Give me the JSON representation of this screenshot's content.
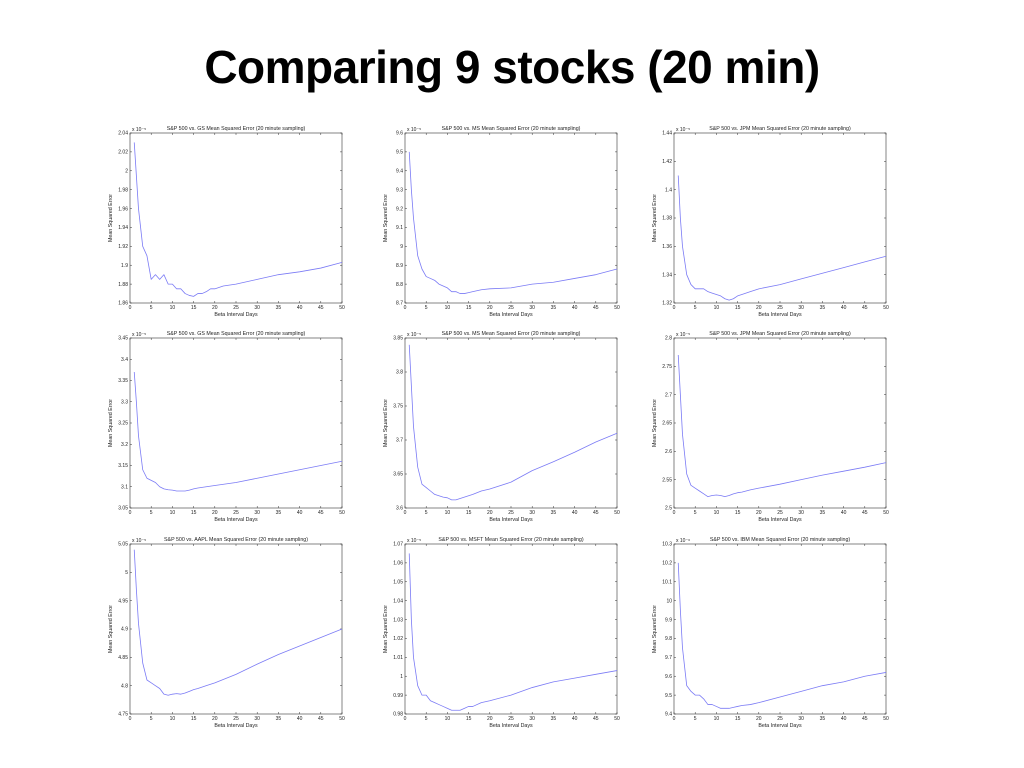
{
  "slide": {
    "title": "Comparing 9 stocks (20 min)"
  },
  "colors": {
    "line": "#7b7bf5",
    "axes": "#333333",
    "background": "#ffffff"
  },
  "chart_data": [
    {
      "type": "line",
      "title": "S&P 500 vs. GS Mean Squared Error (20 minute sampling)",
      "xlabel": "Beta Interval Days",
      "ylabel": "Mean Squared Error",
      "exponent": "x 10⁻⁵",
      "xlim": [
        0,
        50
      ],
      "ylim": [
        1.86,
        2.04
      ],
      "xticks": [
        0,
        5,
        10,
        15,
        20,
        25,
        30,
        35,
        40,
        45,
        50
      ],
      "yticks": [
        1.86,
        1.88,
        1.9,
        1.92,
        1.94,
        1.96,
        1.98,
        2,
        2.02,
        2.04
      ],
      "yticklabels": [
        "1.86",
        "1.88",
        "1.9",
        "1.92",
        "1.94",
        "1.96",
        "1.98",
        "2",
        "2.02",
        "2.04"
      ],
      "x": [
        1,
        2,
        3,
        4,
        5,
        6,
        7,
        8,
        9,
        10,
        11,
        12,
        13,
        14,
        15,
        16,
        17,
        18,
        19,
        20,
        22,
        25,
        30,
        35,
        40,
        45,
        50
      ],
      "y": [
        2.03,
        1.96,
        1.92,
        1.91,
        1.885,
        1.89,
        1.885,
        1.89,
        1.88,
        1.88,
        1.875,
        1.875,
        1.87,
        1.868,
        1.867,
        1.87,
        1.87,
        1.872,
        1.875,
        1.875,
        1.878,
        1.88,
        1.885,
        1.89,
        1.893,
        1.897,
        1.903
      ]
    },
    {
      "type": "line",
      "title": "S&P 500 vs. MS Mean Squared Error (20 minute sampling)",
      "xlabel": "Beta Interval Days",
      "ylabel": "Mean Squared Error",
      "exponent": "x 10⁻⁵",
      "xlim": [
        0,
        50
      ],
      "ylim": [
        8.7,
        9.6
      ],
      "xticks": [
        0,
        5,
        10,
        15,
        20,
        25,
        30,
        35,
        40,
        45,
        50
      ],
      "yticks": [
        8.7,
        8.8,
        8.9,
        9,
        9.1,
        9.2,
        9.3,
        9.4,
        9.5,
        9.6
      ],
      "yticklabels": [
        "8.7",
        "8.8",
        "8.9",
        "9",
        "9.1",
        "9.2",
        "9.3",
        "9.4",
        "9.5",
        "9.6"
      ],
      "x": [
        1,
        1.5,
        2,
        3,
        4,
        5,
        6,
        7,
        8,
        9,
        10,
        11,
        12,
        13,
        14,
        15,
        16,
        18,
        20,
        25,
        30,
        35,
        40,
        45,
        50
      ],
      "y": [
        9.5,
        9.3,
        9.15,
        8.95,
        8.88,
        8.84,
        8.83,
        8.82,
        8.8,
        8.79,
        8.78,
        8.76,
        8.76,
        8.75,
        8.75,
        8.755,
        8.76,
        8.77,
        8.775,
        8.78,
        8.8,
        8.81,
        8.83,
        8.85,
        8.88
      ]
    },
    {
      "type": "line",
      "title": "S&P 500 vs. JPM Mean Squared Error (20 minute sampling)",
      "xlabel": "Beta Interval Days",
      "ylabel": "Mean Squared Error",
      "exponent": "x 10⁻⁵",
      "xlim": [
        0,
        50
      ],
      "ylim": [
        1.32,
        1.44
      ],
      "xticks": [
        0,
        5,
        10,
        15,
        20,
        25,
        30,
        35,
        40,
        45,
        50
      ],
      "yticks": [
        1.32,
        1.34,
        1.36,
        1.38,
        1.4,
        1.42,
        1.44
      ],
      "yticklabels": [
        "1.32",
        "1.34",
        "1.36",
        "1.38",
        "1.4",
        "1.42",
        "1.44"
      ],
      "x": [
        1,
        1.5,
        2,
        3,
        4,
        5,
        6,
        7,
        8,
        9,
        10,
        11,
        12,
        13,
        14,
        15,
        16,
        18,
        20,
        25,
        30,
        35,
        40,
        45,
        50
      ],
      "y": [
        1.41,
        1.38,
        1.36,
        1.34,
        1.333,
        1.33,
        1.33,
        1.33,
        1.328,
        1.327,
        1.326,
        1.325,
        1.323,
        1.322,
        1.323,
        1.325,
        1.326,
        1.328,
        1.33,
        1.333,
        1.337,
        1.341,
        1.345,
        1.349,
        1.353
      ]
    },
    {
      "type": "line",
      "title": "S&P 500 vs. GS Mean Squared Error (20 minute sampling)",
      "xlabel": "Beta Interval Days",
      "ylabel": "Mean Squared Error",
      "exponent": "x 10⁻⁵",
      "xlim": [
        0,
        50
      ],
      "ylim": [
        3.05,
        3.45
      ],
      "xticks": [
        0,
        5,
        10,
        15,
        20,
        25,
        30,
        35,
        40,
        45,
        50
      ],
      "yticks": [
        3.05,
        3.1,
        3.15,
        3.2,
        3.25,
        3.3,
        3.35,
        3.4,
        3.45
      ],
      "yticklabels": [
        "3.05",
        "3.1",
        "3.15",
        "3.2",
        "3.25",
        "3.3",
        "3.35",
        "3.4",
        "3.45"
      ],
      "x": [
        1,
        1.5,
        2,
        3,
        4,
        5,
        6,
        7,
        8,
        9,
        10,
        11,
        12,
        13,
        14,
        15,
        16,
        18,
        20,
        25,
        30,
        35,
        40,
        45,
        50
      ],
      "y": [
        3.37,
        3.3,
        3.22,
        3.14,
        3.12,
        3.115,
        3.11,
        3.1,
        3.095,
        3.093,
        3.092,
        3.09,
        3.09,
        3.09,
        3.092,
        3.095,
        3.097,
        3.1,
        3.103,
        3.11,
        3.12,
        3.13,
        3.14,
        3.15,
        3.16
      ]
    },
    {
      "type": "line",
      "title": "S&P 500 vs. MS Mean Squared Error (20 minute sampling)",
      "xlabel": "Beta Interval Days",
      "ylabel": "Mean Squared Error",
      "exponent": "x 10⁻⁵",
      "xlim": [
        0,
        50
      ],
      "ylim": [
        3.6,
        3.85
      ],
      "xticks": [
        0,
        5,
        10,
        15,
        20,
        25,
        30,
        35,
        40,
        45,
        50
      ],
      "yticks": [
        3.6,
        3.65,
        3.7,
        3.75,
        3.8,
        3.85
      ],
      "yticklabels": [
        "3.6",
        "3.65",
        "3.7",
        "3.75",
        "3.8",
        "3.85"
      ],
      "x": [
        1,
        1.5,
        2,
        3,
        4,
        5,
        6,
        7,
        8,
        9,
        10,
        11,
        12,
        13,
        14,
        15,
        16,
        18,
        20,
        25,
        30,
        35,
        40,
        45,
        50
      ],
      "y": [
        3.84,
        3.78,
        3.72,
        3.66,
        3.635,
        3.63,
        3.625,
        3.62,
        3.618,
        3.616,
        3.615,
        3.612,
        3.612,
        3.614,
        3.616,
        3.618,
        3.62,
        3.625,
        3.628,
        3.638,
        3.655,
        3.668,
        3.682,
        3.697,
        3.71
      ]
    },
    {
      "type": "line",
      "title": "S&P 500 vs. JPM Mean Squared Error (20 minute sampling)",
      "xlabel": "Beta Interval Days",
      "ylabel": "Mean Squared Error",
      "exponent": "x 10⁻⁵",
      "xlim": [
        0,
        50
      ],
      "ylim": [
        2.5,
        2.8
      ],
      "xticks": [
        0,
        5,
        10,
        15,
        20,
        25,
        30,
        35,
        40,
        45,
        50
      ],
      "yticks": [
        2.5,
        2.55,
        2.6,
        2.65,
        2.7,
        2.75,
        2.8
      ],
      "yticklabels": [
        "2.5",
        "2.55",
        "2.6",
        "2.65",
        "2.7",
        "2.75",
        "2.8"
      ],
      "x": [
        1,
        1.5,
        2,
        3,
        4,
        5,
        6,
        7,
        8,
        9,
        10,
        11,
        12,
        13,
        14,
        15,
        16,
        18,
        20,
        25,
        30,
        35,
        40,
        45,
        50
      ],
      "y": [
        2.77,
        2.7,
        2.63,
        2.56,
        2.54,
        2.535,
        2.53,
        2.525,
        2.52,
        2.522,
        2.523,
        2.522,
        2.52,
        2.522,
        2.525,
        2.527,
        2.528,
        2.532,
        2.535,
        2.542,
        2.55,
        2.558,
        2.565,
        2.572,
        2.58
      ]
    },
    {
      "type": "line",
      "title": "S&P 500 vs. AAPL Mean Squared Error (20 minute sampling)",
      "xlabel": "Beta Interval Days",
      "ylabel": "Mean Squared Error",
      "exponent": "x 10⁻⁵",
      "xlim": [
        0,
        50
      ],
      "ylim": [
        4.75,
        5.05
      ],
      "xticks": [
        0,
        5,
        10,
        15,
        20,
        25,
        30,
        35,
        40,
        45,
        50
      ],
      "yticks": [
        4.75,
        4.8,
        4.85,
        4.9,
        4.95,
        5,
        5.05
      ],
      "yticklabels": [
        "4.75",
        "4.8",
        "4.85",
        "4.9",
        "4.95",
        "5",
        "5.05"
      ],
      "x": [
        1,
        1.5,
        2,
        3,
        4,
        5,
        6,
        7,
        8,
        9,
        10,
        11,
        12,
        13,
        14,
        15,
        16,
        18,
        20,
        25,
        30,
        35,
        40,
        45,
        50
      ],
      "y": [
        5.04,
        4.97,
        4.91,
        4.84,
        4.81,
        4.805,
        4.8,
        4.795,
        4.785,
        4.783,
        4.785,
        4.786,
        4.785,
        4.787,
        4.79,
        4.793,
        4.795,
        4.8,
        4.805,
        4.82,
        4.838,
        4.855,
        4.87,
        4.885,
        4.9
      ]
    },
    {
      "type": "line",
      "title": "S&P 500 vs. MSFT Mean Squared Error (20 minute sampling)",
      "xlabel": "Beta Interval Days",
      "ylabel": "Mean Squared Error",
      "exponent": "x 10⁻⁵",
      "xlim": [
        0,
        50
      ],
      "ylim": [
        0.98,
        1.07
      ],
      "xticks": [
        0,
        5,
        10,
        15,
        20,
        25,
        30,
        35,
        40,
        45,
        50
      ],
      "yticks": [
        0.98,
        0.99,
        1,
        1.01,
        1.02,
        1.03,
        1.04,
        1.05,
        1.06,
        1.07
      ],
      "yticklabels": [
        "0.98",
        "0.99",
        "1",
        "1.01",
        "1.02",
        "1.03",
        "1.04",
        "1.05",
        "1.06",
        "1.07"
      ],
      "x": [
        1,
        1.5,
        2,
        3,
        4,
        5,
        6,
        7,
        8,
        9,
        10,
        11,
        12,
        13,
        14,
        15,
        16,
        18,
        20,
        25,
        30,
        35,
        40,
        45,
        50
      ],
      "y": [
        1.065,
        1.03,
        1.01,
        0.995,
        0.99,
        0.99,
        0.987,
        0.986,
        0.985,
        0.984,
        0.983,
        0.982,
        0.982,
        0.982,
        0.983,
        0.984,
        0.984,
        0.986,
        0.987,
        0.99,
        0.994,
        0.997,
        0.999,
        1.001,
        1.003
      ]
    },
    {
      "type": "line",
      "title": "S&P 500 vs. IBM Mean Squared Error (20 minute sampling)",
      "xlabel": "Beta Interval Days",
      "ylabel": "Mean Squared Error",
      "exponent": "x 10⁻⁶",
      "xlim": [
        0,
        50
      ],
      "ylim": [
        9.4,
        10.3
      ],
      "xticks": [
        0,
        5,
        10,
        15,
        20,
        25,
        30,
        35,
        40,
        45,
        50
      ],
      "yticks": [
        9.4,
        9.5,
        9.6,
        9.7,
        9.8,
        9.9,
        10,
        10.1,
        10.2,
        10.3
      ],
      "yticklabels": [
        "9.4",
        "9.5",
        "9.6",
        "9.7",
        "9.8",
        "9.9",
        "10",
        "10.1",
        "10.2",
        "10.3"
      ],
      "x": [
        1,
        1.5,
        2,
        3,
        4,
        5,
        6,
        7,
        8,
        9,
        10,
        11,
        12,
        13,
        14,
        15,
        16,
        18,
        20,
        25,
        30,
        35,
        40,
        45,
        50
      ],
      "y": [
        10.2,
        9.95,
        9.75,
        9.55,
        9.52,
        9.5,
        9.5,
        9.48,
        9.45,
        9.45,
        9.44,
        9.43,
        9.43,
        9.43,
        9.435,
        9.44,
        9.445,
        9.45,
        9.46,
        9.49,
        9.52,
        9.55,
        9.57,
        9.6,
        9.62
      ]
    }
  ]
}
